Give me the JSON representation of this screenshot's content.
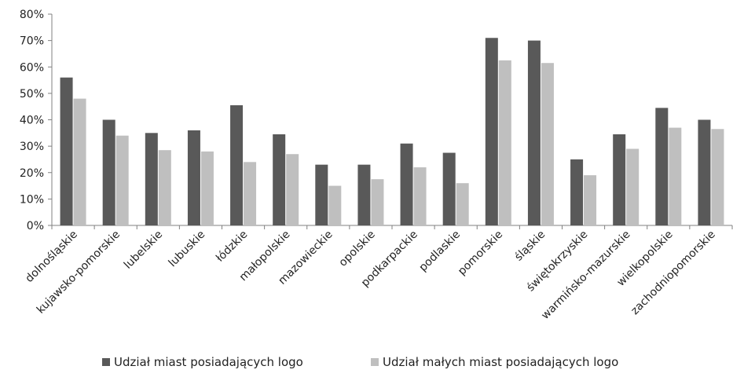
{
  "chart_data": {
    "type": "bar",
    "categories": [
      "dolnośląskie",
      "kujawsko-pomorskie",
      "lubelskie",
      "lubuskie",
      "łódzkie",
      "małopolskie",
      "mazowieckie",
      "opolskie",
      "podkarpackie",
      "podlaskie",
      "pomorskie",
      "śląskie",
      "świętokrzyskie",
      "warmińsko-mazurskie",
      "wielkopolskie",
      "zachodniopomorskie"
    ],
    "series": [
      {
        "name": "Udział miast posiadających logo",
        "color": "#595959",
        "values": [
          56,
          40,
          35,
          36,
          45.5,
          34.5,
          23,
          23,
          31,
          27.5,
          71,
          70,
          25,
          34.5,
          44.5,
          40
        ]
      },
      {
        "name": "Udział małych miast posiadających logo",
        "color": "#bfbfbf",
        "values": [
          48,
          34,
          28.5,
          28,
          24,
          27,
          15,
          17.5,
          22,
          16,
          62.5,
          61.5,
          19,
          29,
          37,
          36.5
        ]
      }
    ],
    "ylim": [
      0,
      80
    ],
    "yticks": [
      0,
      10,
      20,
      30,
      40,
      50,
      60,
      70,
      80
    ],
    "ytick_suffix": "%",
    "grid": false,
    "legend_position": "bottom"
  }
}
